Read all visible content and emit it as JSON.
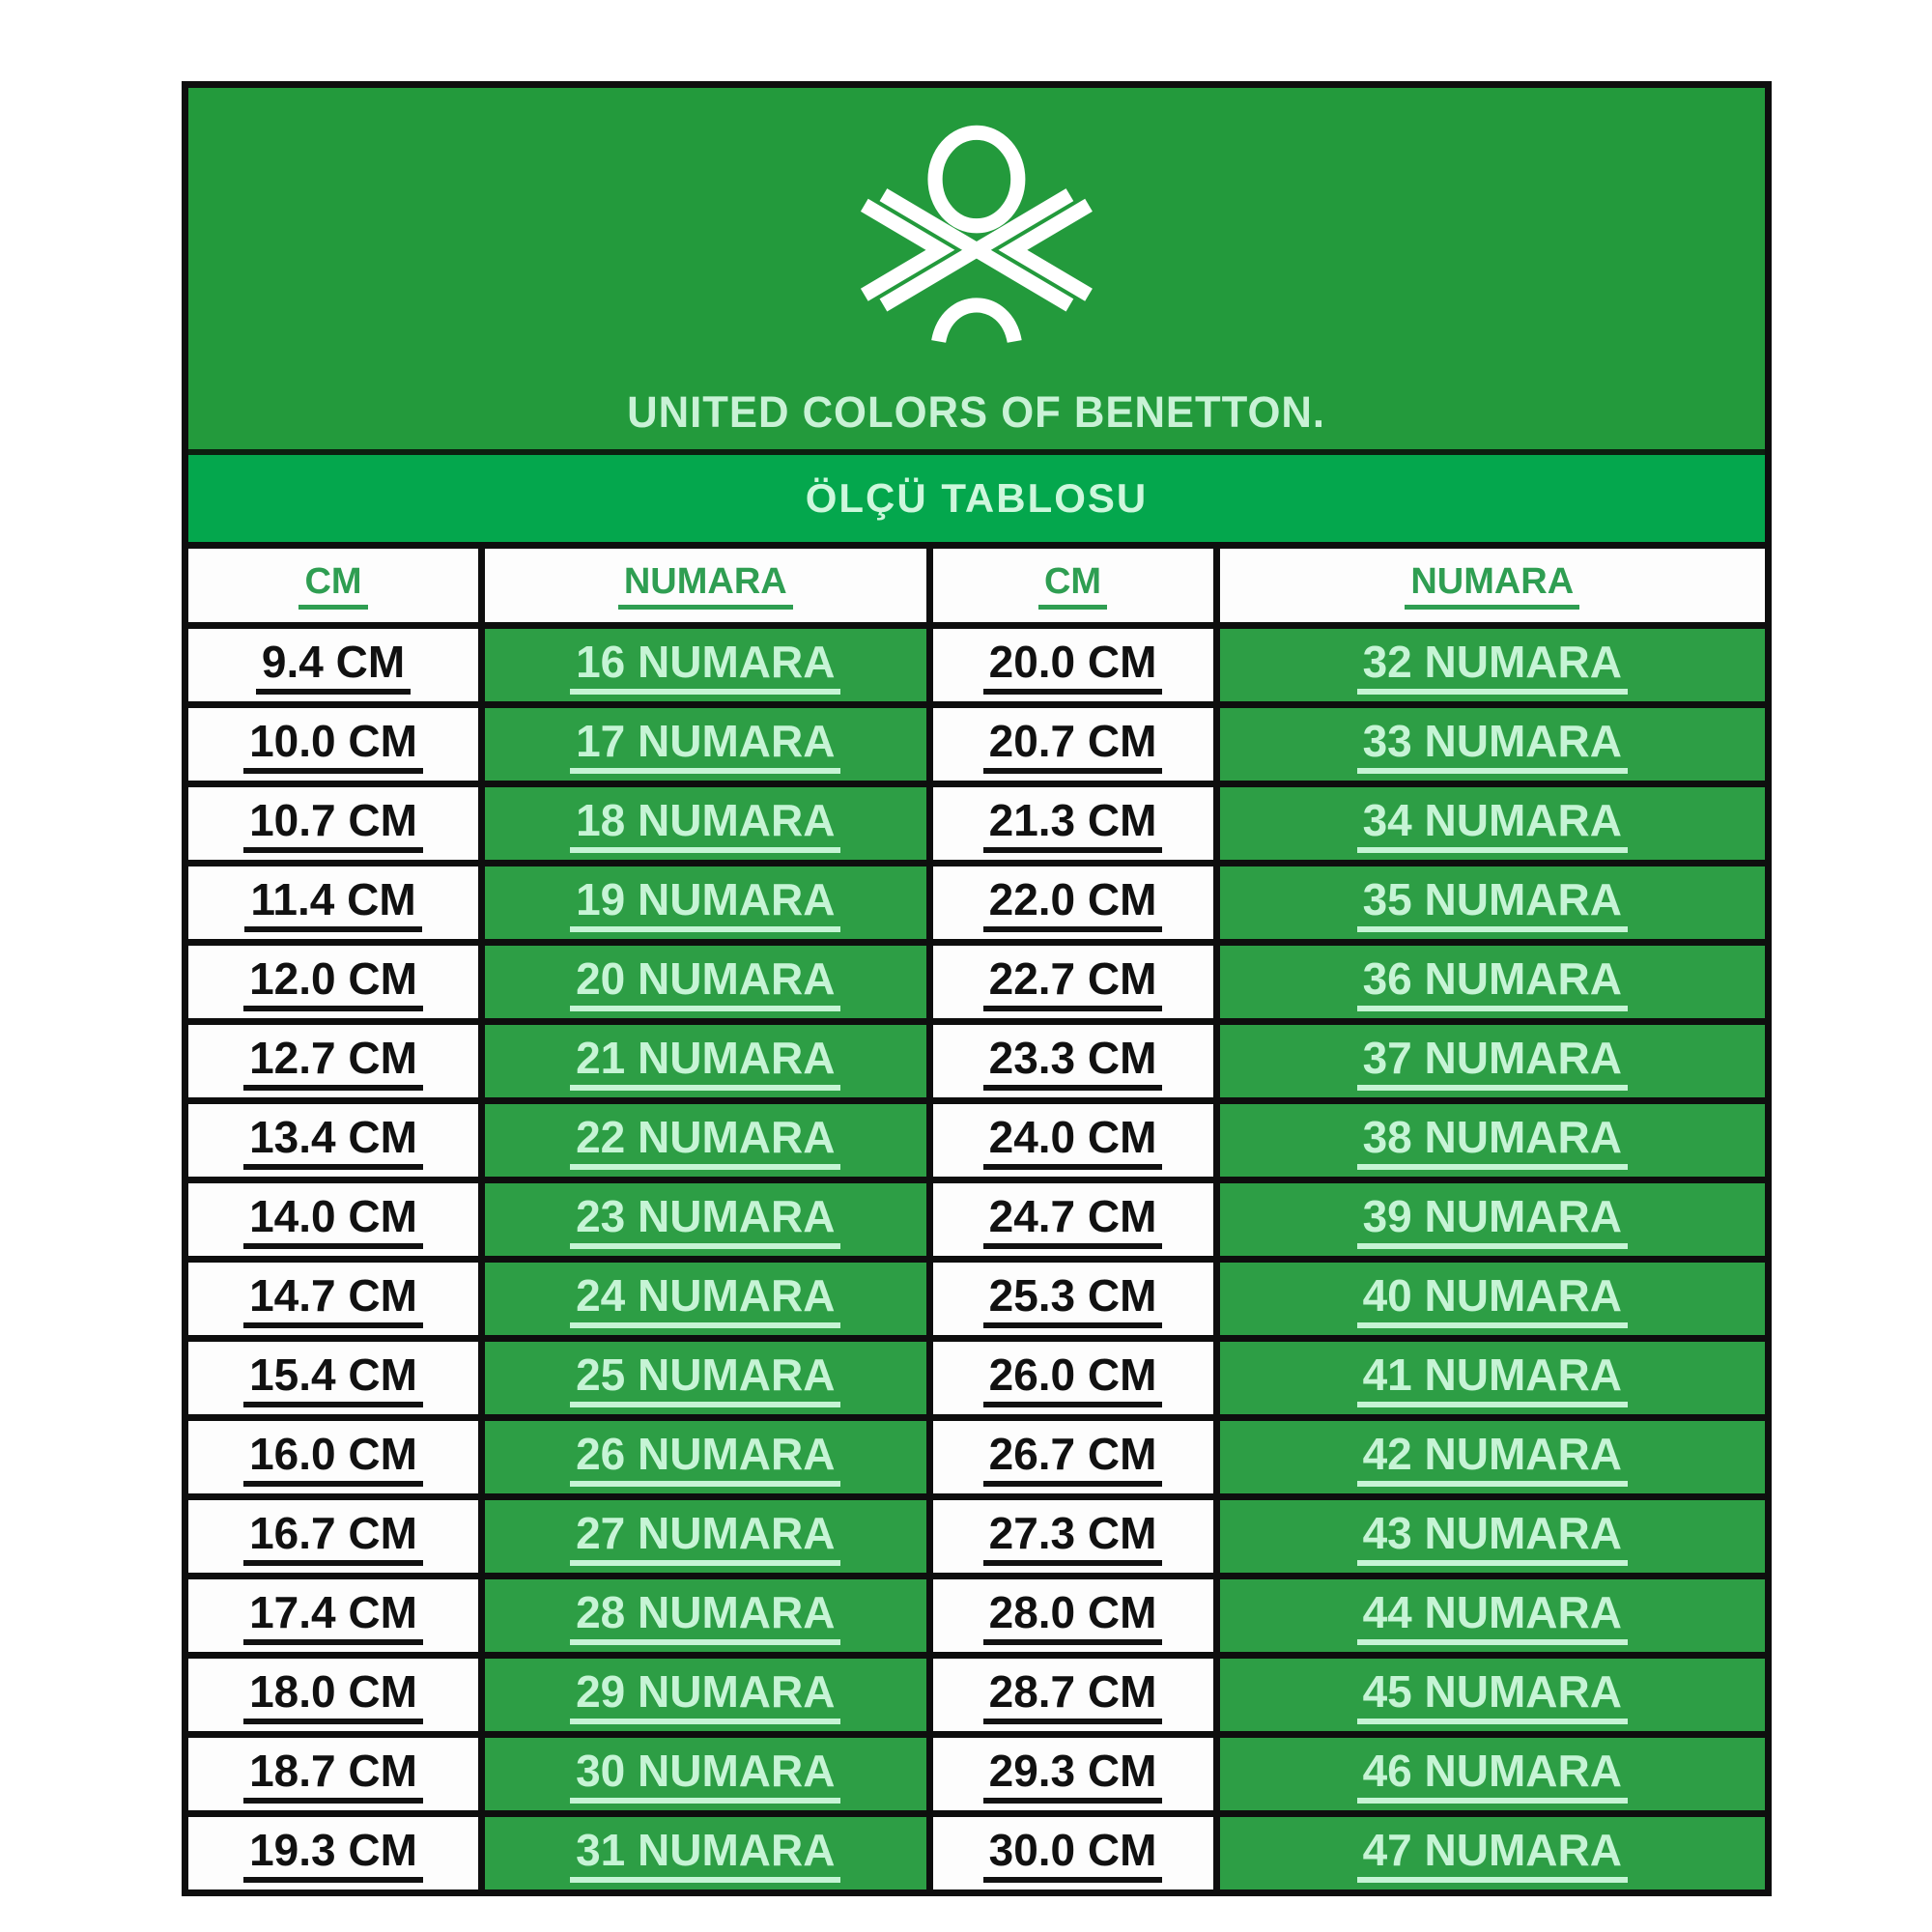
{
  "brand": {
    "logo_icon": "benetton-knot-icon",
    "name": "UNITED COLORS OF BENETTON."
  },
  "title": "ÖLÇÜ TABLOSU",
  "table": {
    "headers": [
      "CM",
      "NUMARA",
      "CM",
      "NUMARA"
    ],
    "rows": [
      {
        "cm_left": "9.4 CM",
        "numara_left": "16 NUMARA",
        "cm_right": "20.0 CM",
        "numara_right": "32 NUMARA"
      },
      {
        "cm_left": "10.0 CM",
        "numara_left": "17 NUMARA",
        "cm_right": "20.7 CM",
        "numara_right": "33 NUMARA"
      },
      {
        "cm_left": "10.7 CM",
        "numara_left": "18 NUMARA",
        "cm_right": "21.3 CM",
        "numara_right": "34 NUMARA"
      },
      {
        "cm_left": "11.4 CM",
        "numara_left": "19 NUMARA",
        "cm_right": "22.0 CM",
        "numara_right": "35 NUMARA"
      },
      {
        "cm_left": "12.0 CM",
        "numara_left": "20 NUMARA",
        "cm_right": "22.7 CM",
        "numara_right": "36 NUMARA"
      },
      {
        "cm_left": "12.7 CM",
        "numara_left": "21 NUMARA",
        "cm_right": "23.3 CM",
        "numara_right": "37 NUMARA"
      },
      {
        "cm_left": "13.4 CM",
        "numara_left": "22 NUMARA",
        "cm_right": "24.0 CM",
        "numara_right": "38 NUMARA"
      },
      {
        "cm_left": "14.0 CM",
        "numara_left": "23 NUMARA",
        "cm_right": "24.7 CM",
        "numara_right": "39 NUMARA"
      },
      {
        "cm_left": "14.7 CM",
        "numara_left": "24 NUMARA",
        "cm_right": "25.3 CM",
        "numara_right": "40 NUMARA"
      },
      {
        "cm_left": "15.4 CM",
        "numara_left": "25 NUMARA",
        "cm_right": "26.0 CM",
        "numara_right": "41 NUMARA"
      },
      {
        "cm_left": "16.0 CM",
        "numara_left": "26 NUMARA",
        "cm_right": "26.7 CM",
        "numara_right": "42 NUMARA"
      },
      {
        "cm_left": "16.7 CM",
        "numara_left": "27 NUMARA",
        "cm_right": "27.3 CM",
        "numara_right": "43 NUMARA"
      },
      {
        "cm_left": "17.4 CM",
        "numara_left": "28 NUMARA",
        "cm_right": "28.0 CM",
        "numara_right": "44 NUMARA"
      },
      {
        "cm_left": "18.0 CM",
        "numara_left": "29 NUMARA",
        "cm_right": "28.7 CM",
        "numara_right": "45 NUMARA"
      },
      {
        "cm_left": "18.7 CM",
        "numara_left": "30 NUMARA",
        "cm_right": "29.3 CM",
        "numara_right": "46 NUMARA"
      },
      {
        "cm_left": "19.3 CM",
        "numara_left": "31 NUMARA",
        "cm_right": "30.0 CM",
        "numara_right": "47 NUMARA"
      }
    ]
  },
  "chart_data": {
    "type": "table",
    "title": "ÖLÇÜ TABLOSU",
    "columns": [
      "CM",
      "NUMARA",
      "CM",
      "NUMARA"
    ],
    "rows": [
      [
        "9.4 CM",
        "16 NUMARA",
        "20.0 CM",
        "32 NUMARA"
      ],
      [
        "10.0 CM",
        "17 NUMARA",
        "20.7 CM",
        "33 NUMARA"
      ],
      [
        "10.7 CM",
        "18 NUMARA",
        "21.3 CM",
        "34 NUMARA"
      ],
      [
        "11.4 CM",
        "19 NUMARA",
        "22.0 CM",
        "35 NUMARA"
      ],
      [
        "12.0 CM",
        "20 NUMARA",
        "22.7 CM",
        "36 NUMARA"
      ],
      [
        "12.7 CM",
        "21 NUMARA",
        "23.3 CM",
        "37 NUMARA"
      ],
      [
        "13.4 CM",
        "22 NUMARA",
        "24.0 CM",
        "38 NUMARA"
      ],
      [
        "14.0 CM",
        "23 NUMARA",
        "24.7 CM",
        "39 NUMARA"
      ],
      [
        "14.7 CM",
        "24 NUMARA",
        "25.3 CM",
        "40 NUMARA"
      ],
      [
        "15.4 CM",
        "25 NUMARA",
        "26.0 CM",
        "41 NUMARA"
      ],
      [
        "16.0 CM",
        "26 NUMARA",
        "26.7 CM",
        "42 NUMARA"
      ],
      [
        "16.7 CM",
        "27 NUMARA",
        "27.3 CM",
        "43 NUMARA"
      ],
      [
        "17.4 CM",
        "28 NUMARA",
        "28.0 CM",
        "44 NUMARA"
      ],
      [
        "18.0 CM",
        "29 NUMARA",
        "28.7 CM",
        "45 NUMARA"
      ],
      [
        "18.7 CM",
        "30 NUMARA",
        "29.3 CM",
        "46 NUMARA"
      ],
      [
        "19.3 CM",
        "31 NUMARA",
        "30.0 CM",
        "47 NUMARA"
      ]
    ],
    "cm_to_numara_pairs": [
      [
        9.4,
        16
      ],
      [
        10.0,
        17
      ],
      [
        10.7,
        18
      ],
      [
        11.4,
        19
      ],
      [
        12.0,
        20
      ],
      [
        12.7,
        21
      ],
      [
        13.4,
        22
      ],
      [
        14.0,
        23
      ],
      [
        14.7,
        24
      ],
      [
        15.4,
        25
      ],
      [
        16.0,
        26
      ],
      [
        16.7,
        27
      ],
      [
        17.4,
        28
      ],
      [
        18.0,
        29
      ],
      [
        18.7,
        30
      ],
      [
        19.3,
        31
      ],
      [
        20.0,
        32
      ],
      [
        20.7,
        33
      ],
      [
        21.3,
        34
      ],
      [
        22.0,
        35
      ],
      [
        22.7,
        36
      ],
      [
        23.3,
        37
      ],
      [
        24.0,
        38
      ],
      [
        24.7,
        39
      ],
      [
        25.3,
        40
      ],
      [
        26.0,
        41
      ],
      [
        26.7,
        42
      ],
      [
        27.3,
        43
      ],
      [
        28.0,
        44
      ],
      [
        28.7,
        45
      ],
      [
        29.3,
        46
      ],
      [
        30.0,
        47
      ]
    ]
  },
  "colors": {
    "banner_green": "#239a3c",
    "strip_green": "#04a74d",
    "cell_green": "#2d9e45",
    "pale_green_text": "#c6f4d5",
    "header_green_text": "#2f9e52",
    "black_text": "#111111",
    "border_black": "#0e0e0e",
    "logo_white": "#ffffff"
  }
}
